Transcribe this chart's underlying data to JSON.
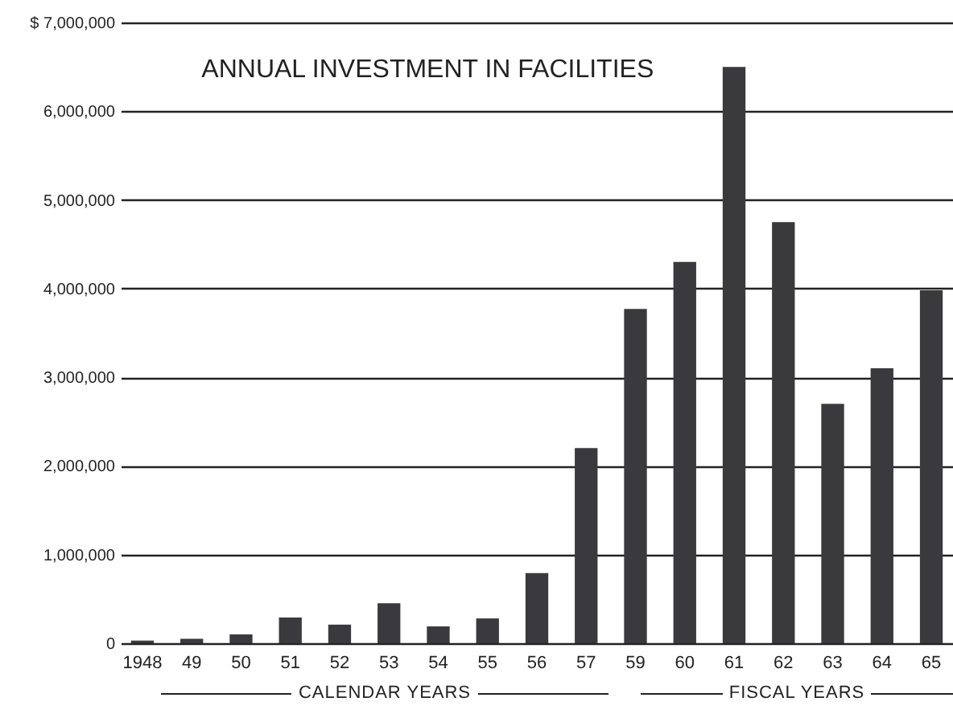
{
  "chart_data": {
    "type": "bar",
    "title": "ANNUAL INVESTMENT IN FACILITIES",
    "categories": [
      "1948",
      "49",
      "50",
      "51",
      "52",
      "53",
      "54",
      "55",
      "56",
      "57",
      "59",
      "60",
      "61",
      "62",
      "63",
      "64",
      "65"
    ],
    "values": [
      30000,
      50000,
      100000,
      290000,
      210000,
      450000,
      190000,
      280000,
      790000,
      2200000,
      3770000,
      4300000,
      6500000,
      4750000,
      2700000,
      3100000,
      3980000
    ],
    "color": "#3a3a3e",
    "ylim": [
      0,
      7000000
    ],
    "yticks": [
      0,
      {
        "value": 1000000,
        "label": "1,000,000"
      },
      {
        "value": 2000000,
        "label": "2,000,000"
      },
      {
        "value": 3000000,
        "label": "3,000,000"
      },
      {
        "value": 4000000,
        "label": "4,000,000"
      },
      {
        "value": 5000000,
        "label": "5,000,000"
      },
      {
        "value": 6000000,
        "label": "6,000,000"
      },
      {
        "value": 7000000,
        "label": "$ 7,000,000"
      }
    ],
    "grid": "y",
    "annotations": [
      "CALENDAR YEARS",
      "FISCAL YEARS"
    ]
  }
}
